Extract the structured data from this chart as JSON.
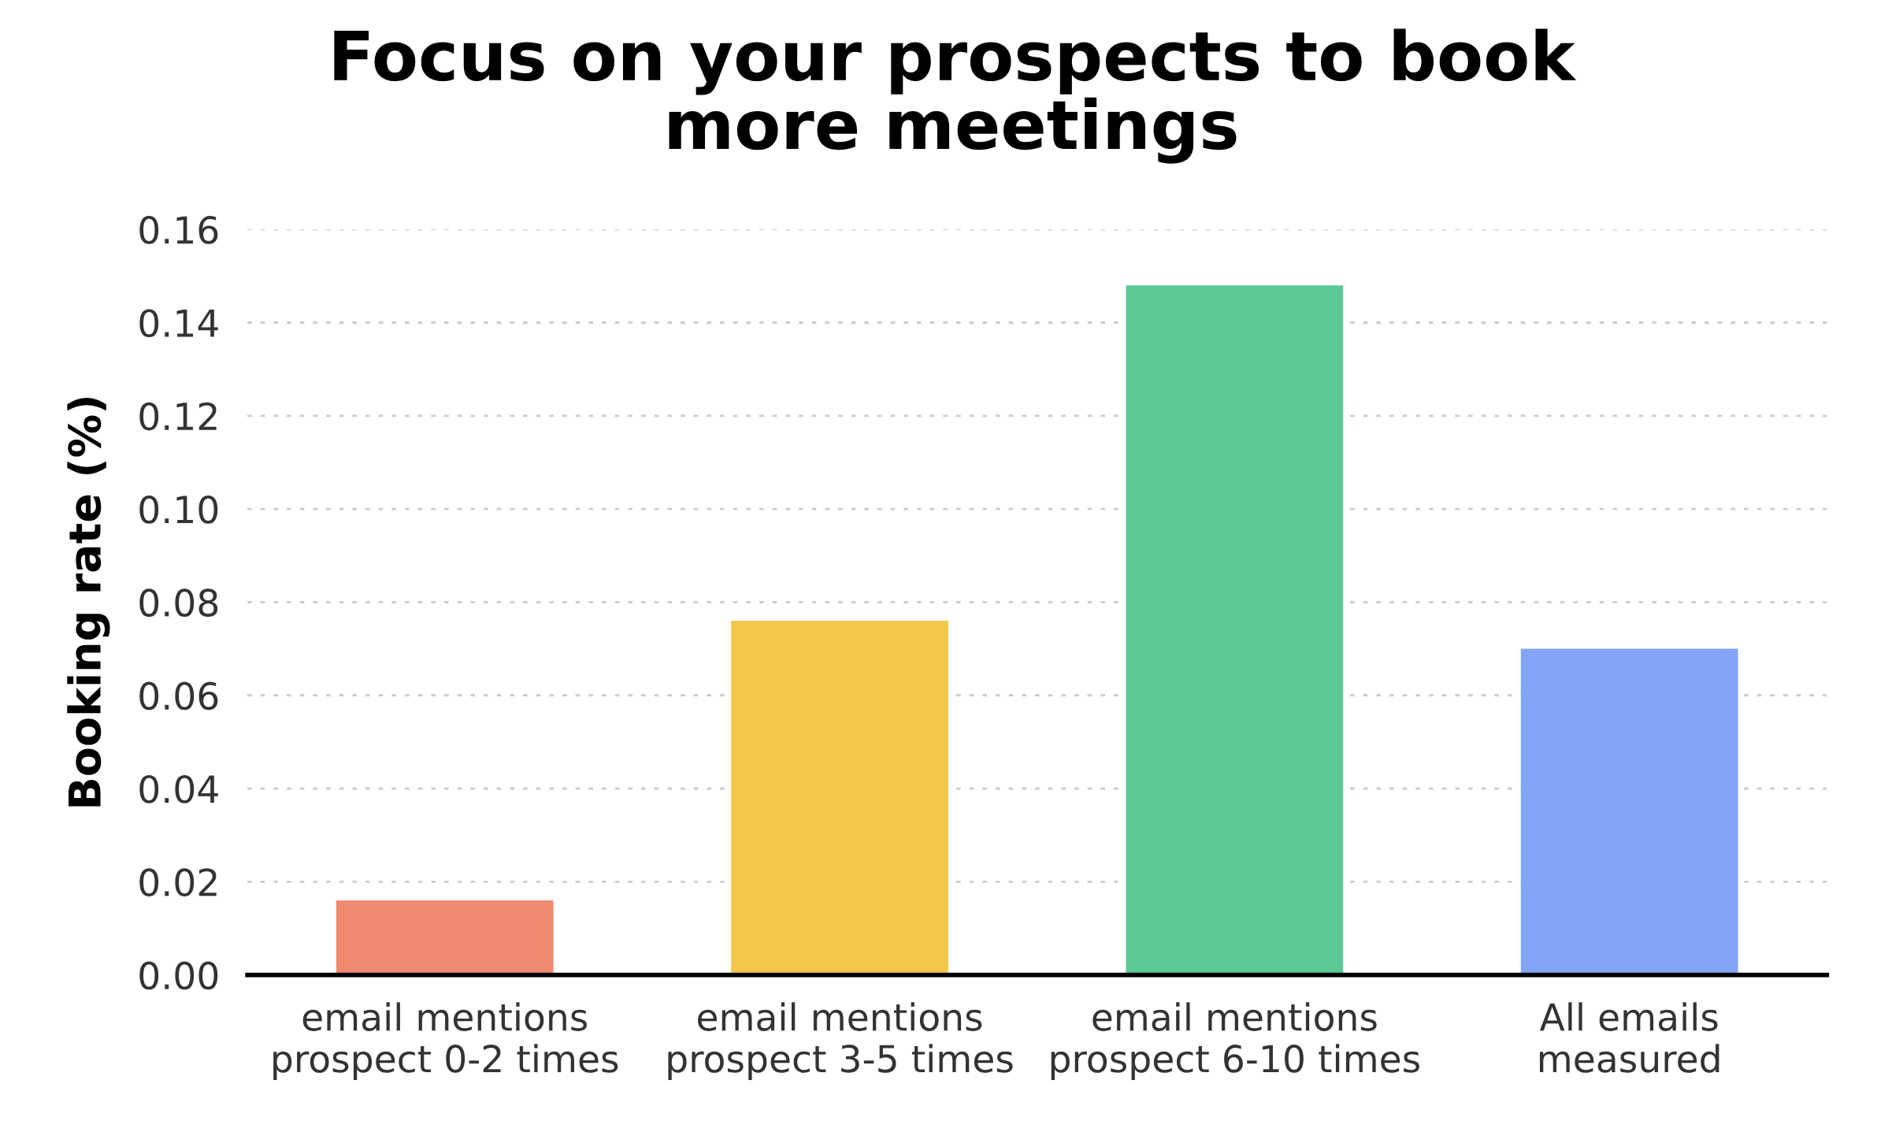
{
  "chart_data": {
    "type": "bar",
    "title": "Focus on your prospects to book\nmore meetings",
    "ylabel": "Booking rate (%)",
    "categories": [
      "email mentions\nprospect 0-2 times",
      "email mentions\nprospect 3-5 times",
      "email mentions\nprospect 6-10 times",
      "All emails\nmeasured"
    ],
    "values": [
      0.016,
      0.076,
      0.148,
      0.07
    ],
    "colors": [
      "#f08a70",
      "#f2c84a",
      "#5cc893",
      "#82a6f5"
    ],
    "ylim": [
      0,
      0.16
    ],
    "yticks": [
      {
        "value": 0,
        "label": "0.00"
      },
      {
        "value": 0.02,
        "label": "0.02"
      },
      {
        "value": 0.04,
        "label": "0.04"
      },
      {
        "value": 0.06,
        "label": "0.06"
      },
      {
        "value": 0.08,
        "label": "0.08"
      },
      {
        "value": 0.1,
        "label": "0.10"
      },
      {
        "value": 0.12,
        "label": "0.12"
      },
      {
        "value": 0.14,
        "label": "0.14"
      },
      {
        "value": 0.16,
        "label": "0.16"
      }
    ],
    "grid": "y"
  }
}
